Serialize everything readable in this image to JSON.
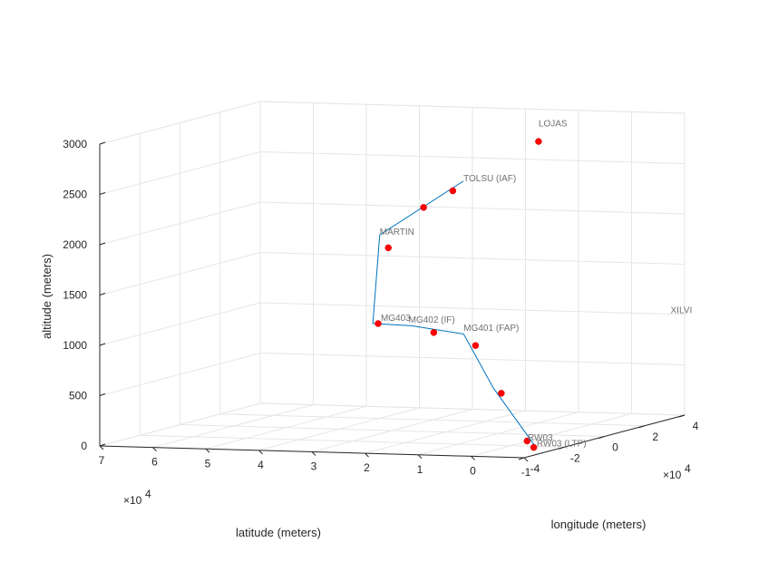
{
  "chart_data": {
    "type": "line3d",
    "title": "",
    "xlabel": "latitude  (meters)",
    "ylabel": "longitude (meters)",
    "zlabel": "altitude  (meters)",
    "x_multiplier": "×10",
    "x_multiplier_exp": "4",
    "y_multiplier": "×10",
    "y_multiplier_exp": "4",
    "xlim": [
      -1,
      7
    ],
    "ylim": [
      -4,
      4
    ],
    "zlim": [
      0,
      3000
    ],
    "x_ticks": [
      -1,
      0,
      1,
      2,
      3,
      4,
      5,
      6,
      7
    ],
    "y_ticks": [
      -4,
      -2,
      0,
      2,
      4
    ],
    "z_ticks": [
      0,
      500,
      1000,
      1500,
      2000,
      2500,
      3000
    ],
    "x_tick_labels": [
      "-1",
      "0",
      "1",
      "2",
      "3",
      "4",
      "5",
      "6",
      "7"
    ],
    "y_tick_labels": [
      "-4",
      "-2",
      "0",
      "2",
      "4"
    ],
    "z_tick_labels": [
      "0",
      "500",
      "1000",
      "1500",
      "2000",
      "2500",
      "3000"
    ],
    "grid": true,
    "path": [
      {
        "x": 2.3,
        "y": 1.7,
        "z": 2400
      },
      {
        "x": 3.5,
        "y": 0.7,
        "z": 1900
      },
      {
        "x": 3.1,
        "y": -0.7,
        "z": 1100
      },
      {
        "x": 2.3,
        "y": -0.9,
        "z": 1100
      },
      {
        "x": 1.2,
        "y": -1.2,
        "z": 1050
      },
      {
        "x": 0.45,
        "y": -1.7,
        "z": 550
      },
      {
        "x": -0.5,
        "y": -2.1,
        "z": 0
      }
    ],
    "markers": [
      {
        "x": 2.5,
        "y": 1.7,
        "z": 2300
      },
      {
        "x": 2.9,
        "y": 1.3,
        "z": 2150
      },
      {
        "x": 3.3,
        "y": 0.6,
        "z": 1780
      },
      {
        "x": 3.0,
        "y": -0.7,
        "z": 1100
      },
      {
        "x": 1.8,
        "y": -1.1,
        "z": 1050
      },
      {
        "x": 0.9,
        "y": -1.4,
        "z": 950
      },
      {
        "x": 0.3,
        "y": -1.7,
        "z": 500
      },
      {
        "x": -0.3,
        "y": -2.0,
        "z": 50
      },
      {
        "x": -0.5,
        "y": -2.2,
        "z": 0
      },
      {
        "x": 1.3,
        "y": 2.8,
        "z": 2750
      }
    ],
    "waypoints": [
      {
        "name": "LOJAS",
        "x": 1.3,
        "y": 2.8,
        "z": 2900
      },
      {
        "name": "TOLSU (IAF)",
        "x": 2.3,
        "y": 1.7,
        "z": 2400
      },
      {
        "name": "MARTIN",
        "x": 3.5,
        "y": 0.7,
        "z": 1900
      },
      {
        "name": "MG403",
        "x": 2.95,
        "y": -0.7,
        "z": 1130
      },
      {
        "name": "MG402 (IF)",
        "x": 2.35,
        "y": -0.9,
        "z": 1130
      },
      {
        "name": "MG401 (FAP)",
        "x": 1.2,
        "y": -1.2,
        "z": 1080
      },
      {
        "name": "RW03",
        "x": -0.35,
        "y": -2.1,
        "z": 60
      },
      {
        "name": "RW03 (LTP)",
        "x": -0.5,
        "y": -2.05,
        "z": 0
      },
      {
        "name": "XILVI",
        "x": -1.0,
        "y": 3.3,
        "z": 1050
      }
    ],
    "colors": {
      "line": "#0072bd",
      "marker": "#ff0000",
      "grid": "#e6e6e6",
      "axis": "#262626",
      "label": "#707070"
    }
  }
}
